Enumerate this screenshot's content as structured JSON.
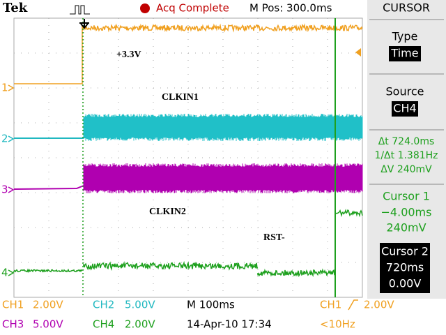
{
  "header": {
    "brand": "Tek",
    "status": "Acq Complete",
    "position": "M Pos: 300.0ms",
    "menu": "CURSOR"
  },
  "side_panel": {
    "type_label": "Type",
    "type_value": "Time",
    "source_label": "Source",
    "source_value": "CH4",
    "delta_t": "Δt 724.0ms",
    "inverse_delta_t": "1/Δt 1.381Hz",
    "delta_v": "ΔV 240mV",
    "cursor1": {
      "title": "Cursor 1",
      "time": "−4.00ms",
      "volts": "240mV"
    },
    "cursor2": {
      "title": "Cursor 2",
      "time": "720ms",
      "volts": "0.00V"
    }
  },
  "annotations": [
    "+3.3V",
    "CLKIN1",
    "CLKIN2",
    "RST-"
  ],
  "channel_markers": [
    "1",
    "2",
    "3",
    "4"
  ],
  "footer": {
    "ch1": [
      "CH1",
      "2.00V"
    ],
    "ch2": [
      "CH2",
      "5.00V"
    ],
    "timebase": "M 100ms",
    "trigger": [
      "CH1",
      "2.00V"
    ],
    "ch3": [
      "CH3",
      "5.00V"
    ],
    "ch4": [
      "CH4",
      "2.00V"
    ],
    "date": "14-Apr-10 17:34",
    "freq": "<10Hz"
  }
}
